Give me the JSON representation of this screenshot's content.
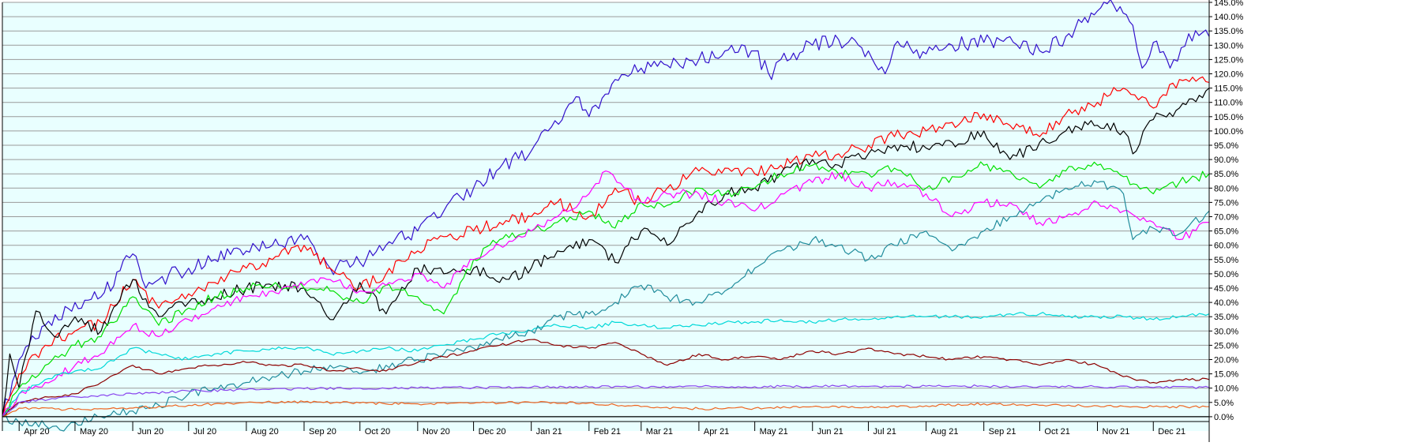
{
  "chart_data": {
    "type": "line",
    "title": "",
    "xlabel": "",
    "ylabel": "",
    "ylim": [
      -5,
      145
    ],
    "grid": true,
    "plot_background": "#e9ffff",
    "grid_color": "#9a9a9a",
    "y_ticks": [
      0,
      5,
      10,
      15,
      20,
      25,
      30,
      35,
      40,
      45,
      50,
      55,
      60,
      65,
      70,
      75,
      80,
      85,
      90,
      95,
      100,
      105,
      110,
      115,
      120,
      125,
      130,
      135,
      140,
      145
    ],
    "y_tick_labels": [
      "0.0%",
      "5.0%",
      "10.0%",
      "15.0%",
      "20.0%",
      "25.0%",
      "30.0%",
      "35.0%",
      "40.0%",
      "45.0%",
      "50.0%",
      "55.0%",
      "60.0%",
      "65.0%",
      "70.0%",
      "75.0%",
      "80.0%",
      "85.0%",
      "90.0%",
      "95.0%",
      "100.0%",
      "105.0%",
      "110.0%",
      "115.0%",
      "120.0%",
      "125.0%",
      "130.0%",
      "135.0%",
      "140.0%",
      "145.0%"
    ],
    "x_range": [
      "2020-03-23",
      "2021-12-31"
    ],
    "x_ticks": [
      "2020-04-01",
      "2020-05-01",
      "2020-06-01",
      "2020-07-01",
      "2020-08-01",
      "2020-09-01",
      "2020-10-01",
      "2020-11-01",
      "2020-12-01",
      "2021-01-01",
      "2021-02-01",
      "2021-03-01",
      "2021-04-01",
      "2021-05-01",
      "2021-06-01",
      "2021-07-01",
      "2021-08-01",
      "2021-09-01",
      "2021-10-01",
      "2021-11-01",
      "2021-12-01"
    ],
    "x_tick_labels": [
      "Apr 20",
      "May 20",
      "Jun 20",
      "Jul 20",
      "Aug 20",
      "Sep 20",
      "Oct 20",
      "Nov 20",
      "Dec 20",
      "Jan 21",
      "Feb 21",
      "Mar 21",
      "Apr 21",
      "May 21",
      "Jun 21",
      "Jul 21",
      "Aug 21",
      "Sep 21",
      "Oct 21",
      "Nov 21",
      "Dec 21"
    ],
    "series": [
      {
        "color": "#3311cc",
        "x": [
          "2020-03-23",
          "2020-04-01",
          "2020-04-15",
          "2020-05-01",
          "2020-05-15",
          "2020-06-01",
          "2020-06-08",
          "2020-06-15",
          "2020-07-01",
          "2020-07-15",
          "2020-08-01",
          "2020-08-15",
          "2020-09-01",
          "2020-09-15",
          "2020-10-01",
          "2020-10-15",
          "2020-11-01",
          "2020-11-15",
          "2020-12-01",
          "2020-12-15",
          "2021-01-01",
          "2021-01-10",
          "2021-01-25",
          "2021-02-01",
          "2021-02-15",
          "2021-03-01",
          "2021-03-15",
          "2021-04-01",
          "2021-04-15",
          "2021-05-01",
          "2021-05-10",
          "2021-05-15",
          "2021-06-01",
          "2021-06-15",
          "2021-07-01",
          "2021-07-10",
          "2021-07-15",
          "2021-08-01",
          "2021-08-15",
          "2021-09-01",
          "2021-09-15",
          "2021-10-01",
          "2021-10-15",
          "2021-11-01",
          "2021-11-08",
          "2021-11-20",
          "2021-11-25",
          "2021-12-01",
          "2021-12-10",
          "2021-12-20",
          "2021-12-31"
        ],
        "values": [
          0,
          20,
          32,
          40,
          42,
          57,
          45,
          48,
          52,
          55,
          58,
          60,
          62,
          52,
          54,
          60,
          65,
          72,
          80,
          87,
          93,
          100,
          112,
          105,
          118,
          122,
          123,
          125,
          128,
          128,
          118,
          125,
          130,
          132,
          128,
          120,
          130,
          127,
          130,
          131,
          133,
          128,
          133,
          142,
          146,
          137,
          122,
          131,
          122,
          134,
          133
        ]
      },
      {
        "color": "#ff0000",
        "x": [
          "2020-03-23",
          "2020-04-01",
          "2020-04-15",
          "2020-05-01",
          "2020-05-15",
          "2020-06-01",
          "2020-06-15",
          "2020-07-01",
          "2020-07-15",
          "2020-08-01",
          "2020-08-15",
          "2020-09-01",
          "2020-09-15",
          "2020-10-01",
          "2020-10-15",
          "2020-11-01",
          "2020-11-15",
          "2020-12-01",
          "2020-12-15",
          "2021-01-01",
          "2021-01-15",
          "2021-02-01",
          "2021-02-15",
          "2021-03-01",
          "2021-03-15",
          "2021-04-01",
          "2021-04-15",
          "2021-05-01",
          "2021-05-15",
          "2021-06-01",
          "2021-06-15",
          "2021-07-01",
          "2021-07-15",
          "2021-08-01",
          "2021-08-15",
          "2021-09-01",
          "2021-09-15",
          "2021-10-01",
          "2021-10-15",
          "2021-11-01",
          "2021-11-15",
          "2021-11-25",
          "2021-12-01",
          "2021-12-15",
          "2021-12-31"
        ],
        "values": [
          0,
          15,
          25,
          30,
          33,
          48,
          38,
          43,
          47,
          52,
          55,
          60,
          52,
          45,
          50,
          58,
          63,
          65,
          68,
          70,
          75,
          70,
          80,
          75,
          80,
          86,
          87,
          85,
          88,
          91,
          92,
          95,
          98,
          100,
          103,
          106,
          102,
          98,
          106,
          110,
          115,
          112,
          108,
          118,
          117
        ]
      },
      {
        "color": "#000000",
        "x": [
          "2020-03-23",
          "2020-03-27",
          "2020-04-01",
          "2020-04-10",
          "2020-04-20",
          "2020-05-01",
          "2020-05-15",
          "2020-06-01",
          "2020-06-15",
          "2020-07-01",
          "2020-07-15",
          "2020-08-01",
          "2020-08-15",
          "2020-09-01",
          "2020-09-15",
          "2020-10-01",
          "2020-10-15",
          "2020-11-01",
          "2020-11-15",
          "2020-12-01",
          "2020-12-15",
          "2021-01-01",
          "2021-01-15",
          "2021-02-01",
          "2021-02-15",
          "2021-03-01",
          "2021-03-15",
          "2021-04-01",
          "2021-04-15",
          "2021-05-01",
          "2021-05-15",
          "2021-06-01",
          "2021-06-15",
          "2021-07-01",
          "2021-07-15",
          "2021-08-01",
          "2021-08-15",
          "2021-09-01",
          "2021-09-15",
          "2021-10-01",
          "2021-10-15",
          "2021-11-01",
          "2021-11-15",
          "2021-11-20",
          "2021-12-01",
          "2021-12-15",
          "2021-12-31"
        ],
        "values": [
          0,
          22,
          10,
          37,
          28,
          35,
          30,
          48,
          35,
          40,
          42,
          45,
          46,
          45,
          34,
          47,
          36,
          52,
          50,
          52,
          47,
          52,
          58,
          62,
          54,
          65,
          60,
          72,
          78,
          80,
          85,
          90,
          88,
          92,
          95,
          94,
          96,
          100,
          90,
          96,
          100,
          102,
          100,
          92,
          104,
          108,
          115
        ]
      },
      {
        "color": "#00e000",
        "x": [
          "2020-03-23",
          "2020-04-01",
          "2020-04-15",
          "2020-05-01",
          "2020-05-15",
          "2020-06-01",
          "2020-06-15",
          "2020-07-01",
          "2020-07-15",
          "2020-08-01",
          "2020-08-15",
          "2020-09-01",
          "2020-09-15",
          "2020-10-01",
          "2020-10-15",
          "2020-11-01",
          "2020-11-15",
          "2020-12-01",
          "2020-12-15",
          "2021-01-01",
          "2021-01-15",
          "2021-02-01",
          "2021-02-15",
          "2021-03-01",
          "2021-03-15",
          "2021-04-01",
          "2021-04-15",
          "2021-05-01",
          "2021-05-15",
          "2021-06-01",
          "2021-06-15",
          "2021-07-01",
          "2021-07-15",
          "2021-08-01",
          "2021-08-15",
          "2021-09-01",
          "2021-09-15",
          "2021-10-01",
          "2021-10-15",
          "2021-11-01",
          "2021-11-15",
          "2021-12-01",
          "2021-12-15",
          "2021-12-31"
        ],
        "values": [
          0,
          10,
          18,
          25,
          28,
          42,
          32,
          38,
          42,
          45,
          46,
          45,
          44,
          40,
          46,
          42,
          36,
          55,
          62,
          65,
          68,
          72,
          66,
          75,
          74,
          80,
          78,
          80,
          85,
          88,
          85,
          85,
          87,
          80,
          84,
          88,
          86,
          80,
          86,
          88,
          84,
          78,
          82,
          85
        ]
      },
      {
        "color": "#ff00ff",
        "x": [
          "2020-03-23",
          "2020-04-01",
          "2020-04-15",
          "2020-05-01",
          "2020-05-15",
          "2020-06-01",
          "2020-06-15",
          "2020-07-01",
          "2020-07-15",
          "2020-08-01",
          "2020-08-15",
          "2020-09-01",
          "2020-09-15",
          "2020-10-01",
          "2020-10-15",
          "2020-11-01",
          "2020-11-15",
          "2020-12-01",
          "2020-12-15",
          "2021-01-01",
          "2021-01-15",
          "2021-02-01",
          "2021-02-10",
          "2021-02-20",
          "2021-03-01",
          "2021-03-15",
          "2021-04-01",
          "2021-04-15",
          "2021-05-01",
          "2021-05-15",
          "2021-06-01",
          "2021-06-15",
          "2021-07-01",
          "2021-07-15",
          "2021-08-01",
          "2021-08-15",
          "2021-09-01",
          "2021-09-15",
          "2021-10-01",
          "2021-10-15",
          "2021-11-01",
          "2021-11-15",
          "2021-12-01",
          "2021-12-15",
          "2021-12-31"
        ],
        "values": [
          0,
          8,
          12,
          18,
          22,
          32,
          28,
          34,
          38,
          42,
          44,
          46,
          48,
          44,
          46,
          50,
          45,
          55,
          60,
          65,
          70,
          78,
          86,
          80,
          75,
          78,
          78,
          75,
          72,
          78,
          82,
          85,
          80,
          82,
          78,
          70,
          75,
          75,
          68,
          70,
          75,
          72,
          68,
          62,
          68
        ]
      },
      {
        "color": "#00d8d8",
        "x": [
          "2020-03-23",
          "2020-04-01",
          "2020-04-15",
          "2020-05-01",
          "2020-05-15",
          "2020-06-01",
          "2020-06-15",
          "2020-07-01",
          "2020-07-15",
          "2020-08-01",
          "2020-08-15",
          "2020-09-01",
          "2020-09-15",
          "2020-10-01",
          "2020-10-15",
          "2020-11-01",
          "2020-11-15",
          "2020-12-01",
          "2020-12-15",
          "2021-01-01",
          "2021-01-15",
          "2021-02-01",
          "2021-02-15",
          "2021-03-01",
          "2021-03-15",
          "2021-04-01",
          "2021-04-15",
          "2021-05-01",
          "2021-05-15",
          "2021-06-01",
          "2021-06-15",
          "2021-07-01",
          "2021-07-15",
          "2021-08-01",
          "2021-08-15",
          "2021-09-01",
          "2021-09-15",
          "2021-10-01",
          "2021-10-15",
          "2021-11-01",
          "2021-11-15",
          "2021-12-01",
          "2021-12-15",
          "2021-12-31"
        ],
        "values": [
          0,
          8,
          13,
          16,
          17,
          24,
          22,
          20,
          22,
          23,
          24,
          24,
          22,
          23,
          24,
          23,
          25,
          27,
          29,
          30,
          32,
          31,
          33,
          32,
          31,
          32,
          33,
          33,
          34,
          33,
          34,
          34,
          35,
          35,
          35,
          35,
          36,
          36,
          35,
          35,
          35,
          34,
          35,
          36
        ]
      },
      {
        "color": "#208c9c",
        "x": [
          "2020-03-23",
          "2020-04-01",
          "2020-04-15",
          "2020-04-25",
          "2020-05-01",
          "2020-05-15",
          "2020-06-01",
          "2020-06-15",
          "2020-07-01",
          "2020-07-15",
          "2020-08-01",
          "2020-08-15",
          "2020-09-01",
          "2020-09-15",
          "2020-10-01",
          "2020-10-15",
          "2020-11-01",
          "2020-11-15",
          "2020-12-01",
          "2020-12-15",
          "2021-01-01",
          "2021-01-15",
          "2021-02-01",
          "2021-02-15",
          "2021-03-01",
          "2021-03-15",
          "2021-04-01",
          "2021-04-15",
          "2021-05-01",
          "2021-05-15",
          "2021-06-01",
          "2021-06-15",
          "2021-07-01",
          "2021-07-15",
          "2021-08-01",
          "2021-08-15",
          "2021-09-01",
          "2021-09-15",
          "2021-10-01",
          "2021-10-15",
          "2021-11-01",
          "2021-11-15",
          "2021-11-20",
          "2021-12-01",
          "2021-12-15",
          "2021-12-31"
        ],
        "values": [
          0,
          -2,
          -3,
          -5,
          -2,
          0,
          2,
          4,
          8,
          10,
          12,
          14,
          16,
          18,
          15,
          18,
          20,
          22,
          24,
          27,
          30,
          35,
          36,
          40,
          46,
          42,
          40,
          44,
          52,
          58,
          62,
          60,
          55,
          60,
          65,
          58,
          65,
          70,
          75,
          80,
          82,
          78,
          62,
          66,
          64,
          72
        ]
      },
      {
        "color": "#8c0000",
        "x": [
          "2020-03-23",
          "2020-04-01",
          "2020-04-15",
          "2020-05-01",
          "2020-05-15",
          "2020-06-01",
          "2020-06-15",
          "2020-07-01",
          "2020-07-15",
          "2020-08-01",
          "2020-08-15",
          "2020-09-01",
          "2020-09-15",
          "2020-10-01",
          "2020-10-15",
          "2020-11-01",
          "2020-11-15",
          "2020-12-01",
          "2020-12-15",
          "2021-01-01",
          "2021-01-15",
          "2021-02-01",
          "2021-02-15",
          "2021-03-01",
          "2021-03-15",
          "2021-04-01",
          "2021-04-15",
          "2021-05-01",
          "2021-05-15",
          "2021-06-01",
          "2021-06-15",
          "2021-07-01",
          "2021-07-15",
          "2021-08-01",
          "2021-08-15",
          "2021-09-01",
          "2021-09-15",
          "2021-10-01",
          "2021-10-15",
          "2021-11-01",
          "2021-11-15",
          "2021-12-01",
          "2021-12-15",
          "2021-12-31"
        ],
        "values": [
          0,
          5,
          7,
          8,
          12,
          18,
          15,
          17,
          18,
          19,
          18,
          18,
          16,
          17,
          16,
          19,
          21,
          23,
          25,
          27,
          25,
          24,
          26,
          22,
          18,
          22,
          20,
          21,
          20,
          23,
          22,
          24,
          22,
          21,
          20,
          21,
          20,
          18,
          20,
          18,
          14,
          12,
          13,
          13
        ]
      },
      {
        "color": "#8844ee",
        "x": [
          "2020-03-23",
          "2020-04-01",
          "2020-05-01",
          "2020-06-01",
          "2020-07-01",
          "2020-08-01",
          "2020-09-01",
          "2020-10-01",
          "2020-11-01",
          "2020-12-01",
          "2021-01-01",
          "2021-02-01",
          "2021-03-01",
          "2021-04-01",
          "2021-05-01",
          "2021-06-01",
          "2021-07-01",
          "2021-08-01",
          "2021-09-01",
          "2021-10-01",
          "2021-11-01",
          "2021-12-01",
          "2021-12-31"
        ],
        "values": [
          0,
          5,
          7,
          8,
          9,
          9.5,
          9.8,
          10,
          10,
          10.2,
          10.3,
          10.4,
          10.4,
          10.5,
          10.5,
          10.6,
          10.6,
          10.7,
          10.7,
          10.6,
          10.5,
          10.2,
          10.2
        ]
      },
      {
        "color": "#ee6622",
        "x": [
          "2020-03-23",
          "2020-04-01",
          "2020-05-01",
          "2020-06-01",
          "2020-07-01",
          "2020-08-01",
          "2020-09-01",
          "2020-10-01",
          "2020-11-01",
          "2020-12-01",
          "2021-01-01",
          "2021-02-01",
          "2021-03-01",
          "2021-04-01",
          "2021-05-01",
          "2021-06-01",
          "2021-07-01",
          "2021-08-01",
          "2021-09-01",
          "2021-10-01",
          "2021-11-01",
          "2021-12-01",
          "2021-12-31"
        ],
        "values": [
          0,
          3,
          2.5,
          3,
          4,
          5,
          5.2,
          4.8,
          4.5,
          4.7,
          5,
          4.8,
          3.5,
          2.8,
          3,
          3.5,
          3.2,
          3.8,
          4.5,
          4,
          3.8,
          3.5,
          3.5
        ]
      }
    ]
  }
}
